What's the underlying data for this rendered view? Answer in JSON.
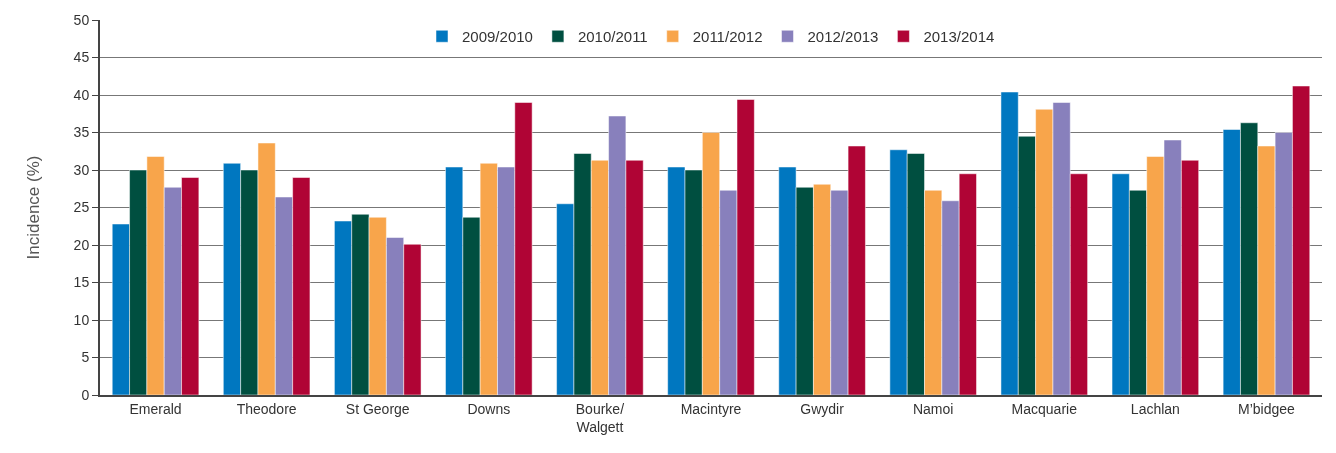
{
  "chart_data": {
    "type": "bar",
    "ylabel": "Incidence (%)",
    "categories": [
      "Emerald",
      "Theodore",
      "St George",
      "Downs",
      "Bourke/\nWalgett",
      "Macintyre",
      "Gwydir",
      "Namoi",
      "Macquarie",
      "Lachlan",
      "M’bidgee"
    ],
    "series": [
      {
        "name": "2009/2010",
        "color": "#0077c0",
        "values": [
          22.8,
          30.9,
          23.2,
          30.4,
          25.5,
          30.4,
          30.4,
          32.7,
          40.4,
          29.5,
          35.4
        ]
      },
      {
        "name": "2010/2011",
        "color": "#004f40",
        "values": [
          30.0,
          30.0,
          24.1,
          23.7,
          32.2,
          30.0,
          27.7,
          32.2,
          34.5,
          27.3,
          36.3
        ]
      },
      {
        "name": "2011/2012",
        "color": "#f8a54b",
        "values": [
          31.8,
          33.6,
          23.7,
          30.9,
          31.3,
          35.0,
          28.1,
          27.3,
          38.1,
          31.8,
          33.2
        ]
      },
      {
        "name": "2012/2013",
        "color": "#8880bc",
        "values": [
          27.7,
          26.4,
          21.0,
          30.4,
          37.2,
          27.3,
          27.3,
          25.9,
          39.0,
          34.0,
          35.0
        ]
      },
      {
        "name": "2013/2014",
        "color": "#b00435",
        "values": [
          29.0,
          29.0,
          20.1,
          39.0,
          31.3,
          39.4,
          33.2,
          29.5,
          29.5,
          31.3,
          41.2
        ]
      }
    ],
    "ylim": [
      0,
      50
    ],
    "yticks": [
      0,
      5,
      10,
      15,
      20,
      25,
      30,
      35,
      40,
      45,
      50
    ],
    "grid": "y",
    "legend": "top"
  }
}
